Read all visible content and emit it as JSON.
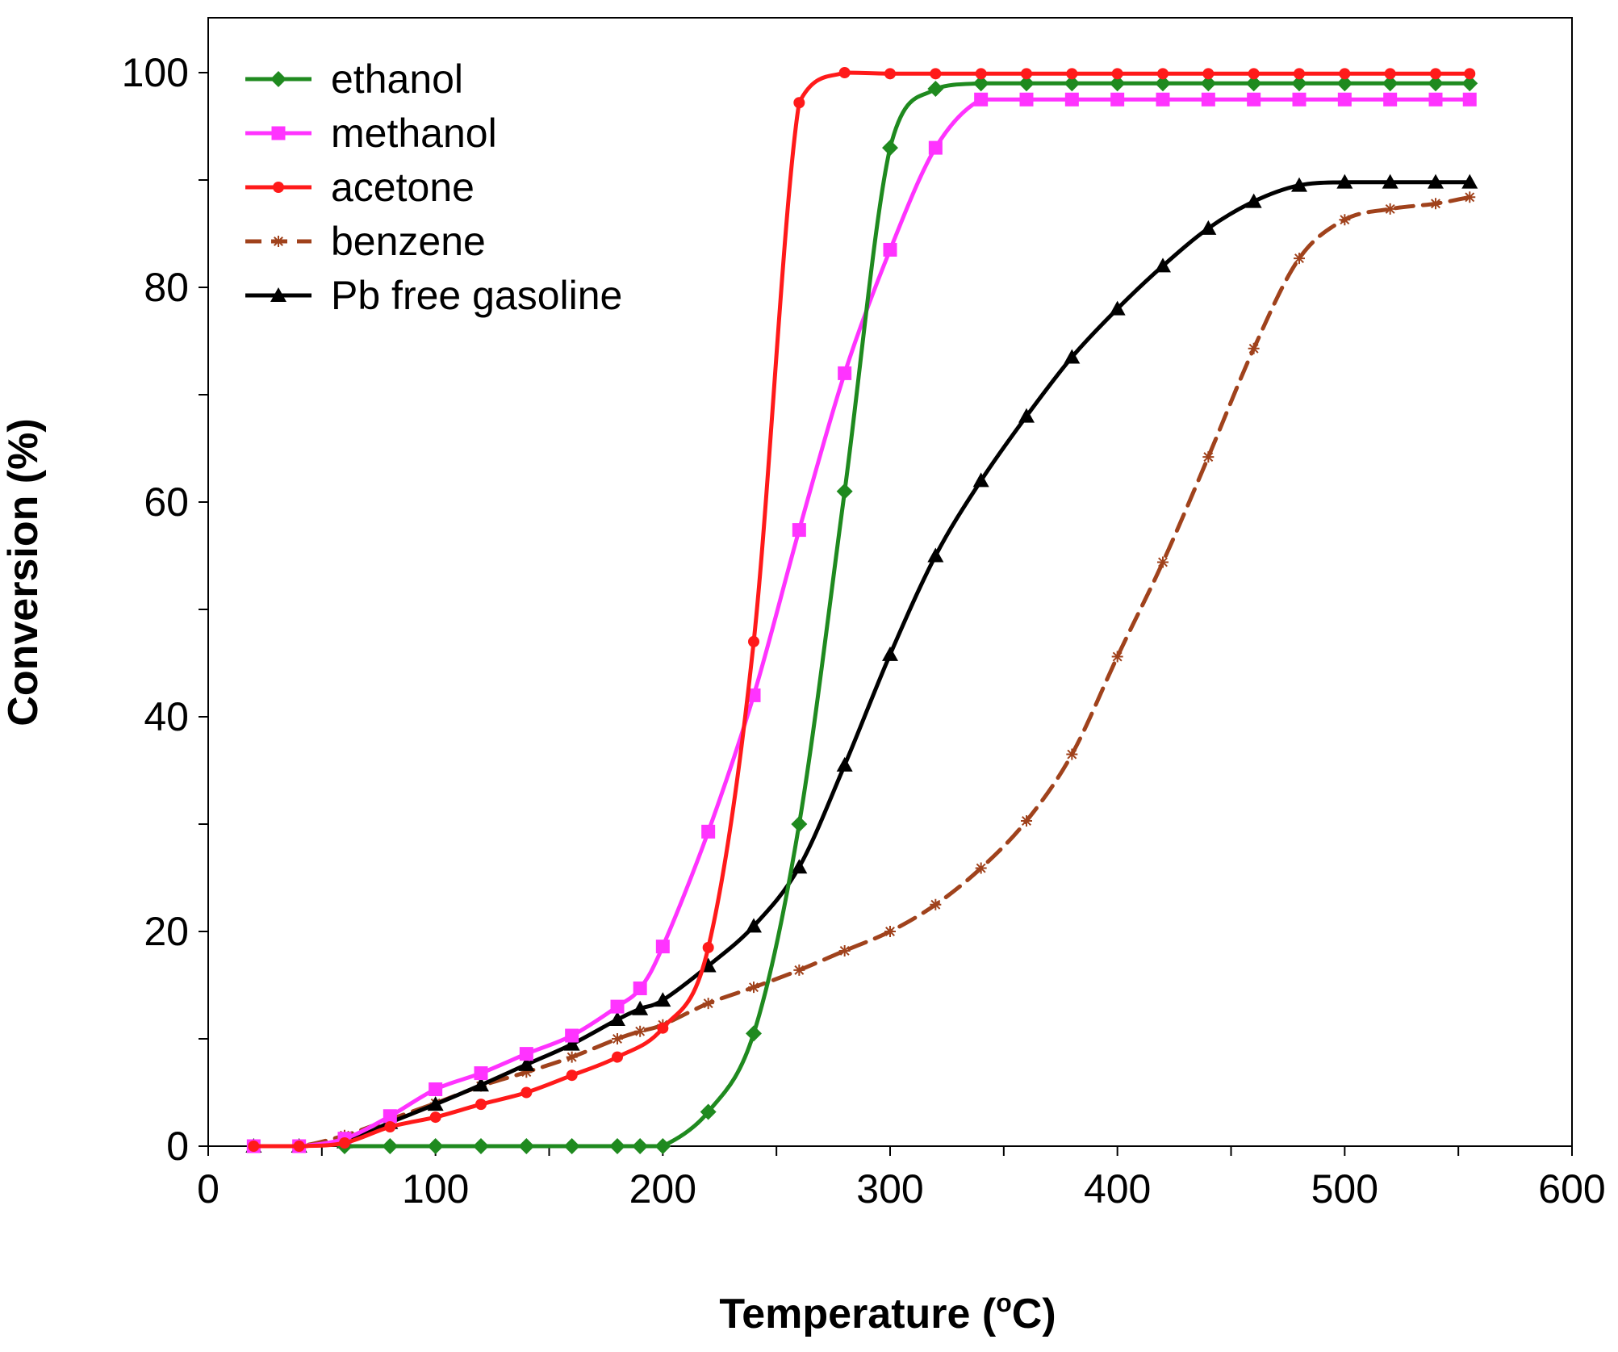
{
  "chart_data": {
    "type": "line",
    "title": "",
    "xlabel": "Temperature (°C)",
    "xlabel_parts": {
      "before": "Temperature (",
      "superscript": "o",
      "after": "C)"
    },
    "ylabel": "Conversion (%)",
    "xlim": [
      0,
      600
    ],
    "ylim": [
      0,
      105
    ],
    "x_ticks": [
      0,
      100,
      200,
      300,
      400,
      500,
      600
    ],
    "x_tick_labels": [
      "0",
      "100",
      "200",
      "300",
      "400",
      "500",
      "600"
    ],
    "x_minor_ticks": [
      50,
      150,
      250,
      350,
      450,
      550
    ],
    "y_ticks": [
      0,
      20,
      40,
      60,
      80,
      100
    ],
    "y_tick_labels": [
      "0",
      "20",
      "40",
      "60",
      "80",
      "100"
    ],
    "y_minor_ticks": [
      10,
      30,
      50,
      70,
      90
    ],
    "grid": false,
    "legend_position": "top-left",
    "series": [
      {
        "name": "ethanol",
        "color": "#1f8a1f",
        "marker": "diamond",
        "dashed": false,
        "x": [
          60,
          80,
          100,
          120,
          140,
          160,
          180,
          190,
          200,
          220,
          240,
          260,
          280,
          300,
          320,
          340,
          360,
          380,
          400,
          420,
          440,
          460,
          480,
          500,
          520,
          540,
          555
        ],
        "y": [
          0,
          0,
          0,
          0,
          0,
          0,
          0,
          0,
          0,
          3.2,
          10.5,
          30,
          61,
          93,
          98.5,
          99,
          99,
          99,
          99,
          99,
          99,
          99,
          99,
          99,
          99,
          99,
          99
        ]
      },
      {
        "name": "methanol",
        "color": "#ff33ff",
        "marker": "square",
        "dashed": false,
        "x": [
          20,
          40,
          60,
          80,
          100,
          120,
          140,
          160,
          180,
          190,
          200,
          220,
          240,
          260,
          280,
          300,
          320,
          340,
          360,
          380,
          400,
          420,
          440,
          460,
          480,
          500,
          520,
          540,
          555
        ],
        "y": [
          0,
          0,
          0.7,
          2.8,
          5.3,
          6.8,
          8.6,
          10.3,
          13,
          14.7,
          18.6,
          29.3,
          42,
          57.4,
          72,
          83.5,
          93,
          97.5,
          97.5,
          97.5,
          97.5,
          97.5,
          97.5,
          97.5,
          97.5,
          97.5,
          97.5,
          97.5,
          97.5
        ]
      },
      {
        "name": "acetone",
        "color": "#ff1a1a",
        "marker": "circle",
        "dashed": false,
        "x": [
          20,
          40,
          60,
          80,
          100,
          120,
          140,
          160,
          180,
          200,
          220,
          240,
          260,
          280,
          300,
          320,
          340,
          360,
          380,
          400,
          420,
          440,
          460,
          480,
          500,
          520,
          540,
          555
        ],
        "y": [
          0,
          0,
          0.3,
          1.8,
          2.7,
          3.9,
          5,
          6.6,
          8.3,
          11,
          18.5,
          47,
          97.2,
          100,
          99.9,
          99.9,
          99.9,
          99.9,
          99.9,
          99.9,
          99.9,
          99.9,
          99.9,
          99.9,
          99.9,
          99.9,
          99.9,
          99.9
        ]
      },
      {
        "name": "benzene",
        "color": "#a0421c",
        "marker": "asterisk",
        "dashed": true,
        "x": [
          20,
          40,
          60,
          80,
          100,
          120,
          140,
          160,
          180,
          190,
          200,
          220,
          240,
          260,
          280,
          300,
          320,
          340,
          360,
          380,
          400,
          420,
          440,
          460,
          480,
          500,
          520,
          540,
          555
        ],
        "y": [
          0,
          0,
          1,
          2.5,
          4,
          5.6,
          6.9,
          8.3,
          10,
          10.7,
          11.3,
          13.3,
          14.8,
          16.4,
          18.2,
          20,
          22.5,
          25.9,
          30.3,
          36.5,
          45.6,
          54.4,
          64.2,
          74.3,
          82.7,
          86.3,
          87.3,
          87.8,
          88.4
        ]
      },
      {
        "name": "Pb free gasoline",
        "color": "#000000",
        "marker": "triangle",
        "dashed": false,
        "x": [
          20,
          40,
          60,
          80,
          100,
          120,
          140,
          160,
          180,
          190,
          200,
          220,
          240,
          260,
          280,
          300,
          320,
          340,
          360,
          380,
          400,
          420,
          440,
          460,
          480,
          500,
          520,
          540,
          555
        ],
        "y": [
          0,
          0,
          0.4,
          2.2,
          3.9,
          5.7,
          7.6,
          9.5,
          11.8,
          12.8,
          13.6,
          16.8,
          20.5,
          26,
          35.5,
          45.8,
          55,
          62,
          68,
          73.5,
          78,
          82,
          85.5,
          88,
          89.5,
          89.8,
          89.8,
          89.8,
          89.8
        ]
      }
    ]
  }
}
